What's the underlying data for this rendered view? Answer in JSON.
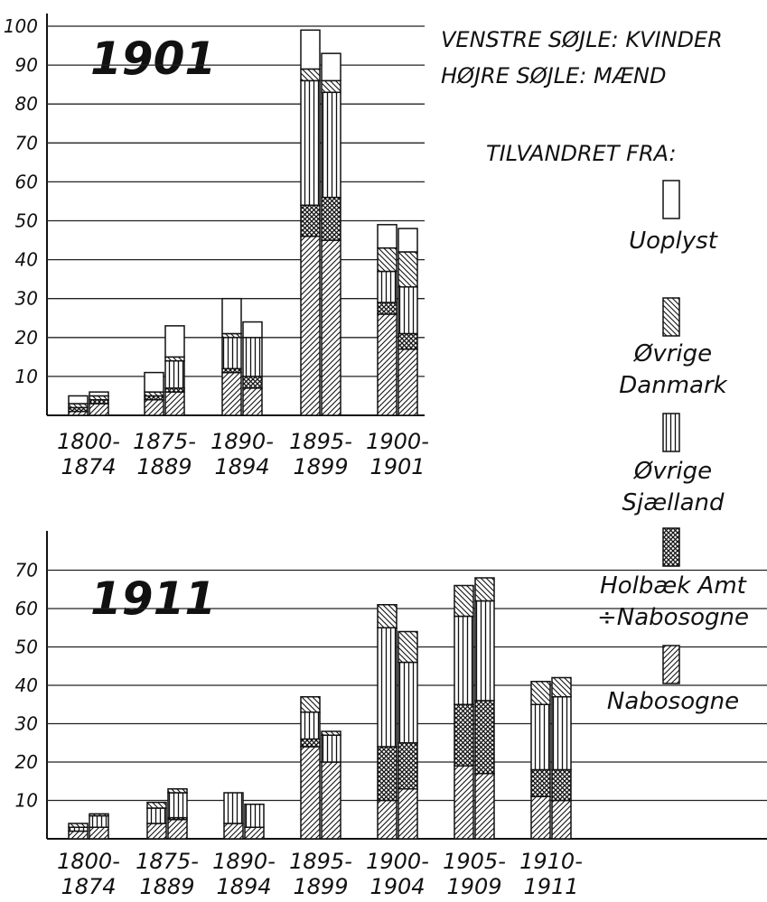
{
  "legend_notes": [
    "VENSTRE SØJLE: KVINDER",
    "HØJRE SØJLE: MÆND"
  ],
  "legend_title": "TILVANDRET FRA:",
  "legend": [
    {
      "key": "uoplyst",
      "lines": [
        "Uoplyst"
      ]
    },
    {
      "key": "danmark",
      "lines": [
        "Øvrige",
        "Danmark"
      ]
    },
    {
      "key": "sjaelland",
      "lines": [
        "Øvrige",
        "Sjælland"
      ]
    },
    {
      "key": "holbaek",
      "lines": [
        "Holbæk Amt",
        "÷Nabosogne"
      ]
    },
    {
      "key": "nabosogne",
      "lines": [
        "Nabosogne"
      ]
    }
  ],
  "chart_data": [
    {
      "type": "bar",
      "stacked": true,
      "title": "1901",
      "ylim": [
        0,
        100
      ],
      "yticks": [
        10,
        20,
        30,
        40,
        50,
        60,
        70,
        80,
        90,
        100
      ],
      "categories": [
        [
          "1800-",
          "1874"
        ],
        [
          "1875-",
          "1889"
        ],
        [
          "1890-",
          "1894"
        ],
        [
          "1895-",
          "1899"
        ],
        [
          "1900-",
          "1901"
        ]
      ],
      "bars": [
        {
          "category": 0,
          "side": "left",
          "segments": {
            "nabosogne": 1,
            "holbaek": 1,
            "sjaelland": 0,
            "danmark": 1,
            "uoplyst": 2
          }
        },
        {
          "category": 0,
          "side": "right",
          "segments": {
            "nabosogne": 3,
            "holbaek": 1,
            "sjaelland": 0,
            "danmark": 1,
            "uoplyst": 1
          }
        },
        {
          "category": 1,
          "side": "left",
          "segments": {
            "nabosogne": 4,
            "holbaek": 1,
            "sjaelland": 0,
            "danmark": 1,
            "uoplyst": 5
          }
        },
        {
          "category": 1,
          "side": "right",
          "segments": {
            "nabosogne": 6,
            "holbaek": 1,
            "sjaelland": 7,
            "danmark": 1,
            "uoplyst": 8
          }
        },
        {
          "category": 2,
          "side": "left",
          "segments": {
            "nabosogne": 11,
            "holbaek": 1,
            "sjaelland": 8,
            "danmark": 1,
            "uoplyst": 9
          }
        },
        {
          "category": 2,
          "side": "right",
          "segments": {
            "nabosogne": 7,
            "holbaek": 3,
            "sjaelland": 10,
            "danmark": 0,
            "uoplyst": 4
          }
        },
        {
          "category": 3,
          "side": "left",
          "segments": {
            "nabosogne": 46,
            "holbaek": 8,
            "sjaelland": 32,
            "danmark": 3,
            "uoplyst": 10
          }
        },
        {
          "category": 3,
          "side": "right",
          "segments": {
            "nabosogne": 45,
            "holbaek": 11,
            "sjaelland": 27,
            "danmark": 3,
            "uoplyst": 7
          }
        },
        {
          "category": 4,
          "side": "left",
          "segments": {
            "nabosogne": 26,
            "holbaek": 3,
            "sjaelland": 8,
            "danmark": 6,
            "uoplyst": 6
          }
        },
        {
          "category": 4,
          "side": "right",
          "segments": {
            "nabosogne": 17,
            "holbaek": 4,
            "sjaelland": 12,
            "danmark": 9,
            "uoplyst": 6
          }
        }
      ]
    },
    {
      "type": "bar",
      "stacked": true,
      "title": "1911",
      "ylim": [
        0,
        80
      ],
      "yticks": [
        10,
        20,
        30,
        40,
        50,
        60,
        70
      ],
      "categories": [
        [
          "1800-",
          "1874"
        ],
        [
          "1875-",
          "1889"
        ],
        [
          "1890-",
          "1894"
        ],
        [
          "1895-",
          "1899"
        ],
        [
          "1900-",
          "1904"
        ],
        [
          "1905-",
          "1909"
        ],
        [
          "1910-",
          "1911"
        ]
      ],
      "bars": [
        {
          "category": 0,
          "side": "left",
          "segments": {
            "nabosogne": 2,
            "holbaek": 0,
            "sjaelland": 1,
            "danmark": 1,
            "uoplyst": 0
          }
        },
        {
          "category": 0,
          "side": "right",
          "segments": {
            "nabosogne": 3,
            "holbaek": 0,
            "sjaelland": 3,
            "danmark": 0.5,
            "uoplyst": 0
          }
        },
        {
          "category": 1,
          "side": "left",
          "segments": {
            "nabosogne": 4,
            "holbaek": 0,
            "sjaelland": 4,
            "danmark": 1.5,
            "uoplyst": 0
          }
        },
        {
          "category": 1,
          "side": "right",
          "segments": {
            "nabosogne": 5,
            "holbaek": 0.5,
            "sjaelland": 6.5,
            "danmark": 1,
            "uoplyst": 0
          }
        },
        {
          "category": 2,
          "side": "left",
          "segments": {
            "nabosogne": 4,
            "holbaek": 0,
            "sjaelland": 8,
            "danmark": 0,
            "uoplyst": 0
          }
        },
        {
          "category": 2,
          "side": "right",
          "segments": {
            "nabosogne": 3,
            "holbaek": 0,
            "sjaelland": 6,
            "danmark": 0,
            "uoplyst": 0
          }
        },
        {
          "category": 3,
          "side": "left",
          "segments": {
            "nabosogne": 24,
            "holbaek": 2,
            "sjaelland": 7,
            "danmark": 4,
            "uoplyst": 0
          }
        },
        {
          "category": 3,
          "side": "right",
          "segments": {
            "nabosogne": 20,
            "holbaek": 0,
            "sjaelland": 7,
            "danmark": 1,
            "uoplyst": 0
          }
        },
        {
          "category": 4,
          "side": "left",
          "segments": {
            "nabosogne": 10,
            "holbaek": 14,
            "sjaelland": 31,
            "danmark": 6,
            "uoplyst": 0
          }
        },
        {
          "category": 4,
          "side": "right",
          "segments": {
            "nabosogne": 13,
            "holbaek": 12,
            "sjaelland": 21,
            "danmark": 8,
            "uoplyst": 0
          }
        },
        {
          "category": 5,
          "side": "left",
          "segments": {
            "nabosogne": 19,
            "holbaek": 16,
            "sjaelland": 23,
            "danmark": 8,
            "uoplyst": 0
          }
        },
        {
          "category": 5,
          "side": "right",
          "segments": {
            "nabosogne": 17,
            "holbaek": 19,
            "sjaelland": 26,
            "danmark": 6,
            "uoplyst": 0
          }
        },
        {
          "category": 6,
          "side": "left",
          "segments": {
            "nabosogne": 11,
            "holbaek": 7,
            "sjaelland": 17,
            "danmark": 6,
            "uoplyst": 0
          }
        },
        {
          "category": 6,
          "side": "right",
          "segments": {
            "nabosogne": 10,
            "holbaek": 8,
            "sjaelland": 19,
            "danmark": 5,
            "uoplyst": 0
          }
        }
      ]
    }
  ]
}
